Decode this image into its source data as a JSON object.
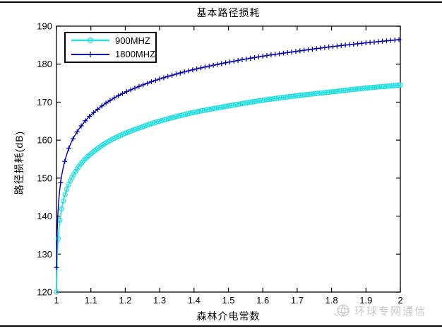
{
  "chart_data": {
    "type": "line",
    "title": "基本路径损耗",
    "xlabel": "森林介电常数",
    "ylabel": "路径损耗(dB)",
    "xlim": [
      1,
      2
    ],
    "ylim": [
      120,
      190
    ],
    "xticks": [
      "1",
      "1.1",
      "1.2",
      "1.3",
      "1.4",
      "1.5",
      "1.6",
      "1.7",
      "1.8",
      "1.9",
      "2"
    ],
    "yticks": [
      "120",
      "130",
      "140",
      "150",
      "160",
      "170",
      "180",
      "190"
    ],
    "grid": false,
    "legend_position": "top-left",
    "series": [
      {
        "name": "900MHZ",
        "color": "#2bdede",
        "marker": "circle",
        "marker_step_x": 0.005,
        "line_width": 1.8,
        "x": [
          1,
          1.002,
          1.005,
          1.01,
          1.015,
          1.02,
          1.03,
          1.04,
          1.05,
          1.075,
          1.1,
          1.15,
          1.2,
          1.3,
          1.4,
          1.5,
          1.6,
          1.7,
          1.8,
          1.9,
          2
        ],
        "y": [
          120,
          128.7,
          134.1,
          138.9,
          141.9,
          144.0,
          147.1,
          149.3,
          151.0,
          154.2,
          156.4,
          159.6,
          161.8,
          165.0,
          167.3,
          169.0,
          170.5,
          171.7,
          172.7,
          173.7,
          174.5
        ]
      },
      {
        "name": "1800MHZ",
        "color": "#0000a4",
        "marker": "plus",
        "marker_step_x": 0.012,
        "line_width": 1.4,
        "x": [
          1,
          1.002,
          1.005,
          1.01,
          1.015,
          1.02,
          1.03,
          1.04,
          1.05,
          1.075,
          1.1,
          1.15,
          1.2,
          1.3,
          1.4,
          1.5,
          1.6,
          1.7,
          1.8,
          1.9,
          2
        ],
        "y": [
          126.5,
          136.0,
          142.1,
          147.3,
          150.6,
          152.9,
          156.3,
          158.8,
          160.7,
          164.1,
          166.6,
          170.1,
          172.6,
          176.1,
          178.6,
          180.5,
          182.1,
          183.4,
          184.6,
          185.6,
          186.5
        ]
      }
    ]
  },
  "watermark": {
    "text": "环球专网通信",
    "color": "#c7c7c7"
  }
}
